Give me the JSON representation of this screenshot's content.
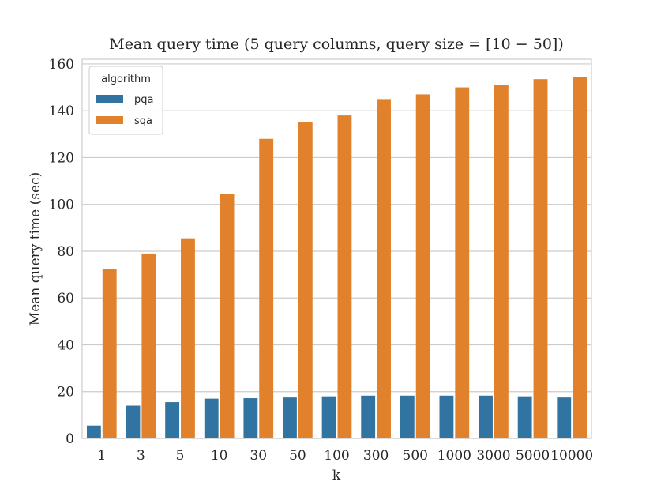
{
  "chart_data": {
    "type": "bar",
    "title": "Mean query time (5 query columns, query size = [10 − 50])",
    "xlabel": "k",
    "ylabel": "Mean query time (sec)",
    "categories": [
      "1",
      "3",
      "5",
      "10",
      "30",
      "50",
      "100",
      "300",
      "500",
      "1000",
      "3000",
      "5000",
      "10000"
    ],
    "ylim": [
      0,
      162
    ],
    "yticks": [
      0,
      20,
      40,
      60,
      80,
      100,
      120,
      140,
      160
    ],
    "grid": true,
    "legend": {
      "title": "algorithm",
      "placement": "top-left"
    },
    "series": [
      {
        "name": "pqa",
        "color": "#3274a1",
        "values": [
          5.5,
          14,
          15.5,
          17,
          17.2,
          17.5,
          18,
          18.3,
          18.3,
          18.3,
          18.3,
          18,
          17.5
        ]
      },
      {
        "name": "sqa",
        "color": "#e1812c",
        "values": [
          72.5,
          79,
          85.5,
          104.5,
          128,
          135,
          138,
          145,
          147,
          150,
          151,
          153.5,
          154.5
        ]
      }
    ]
  }
}
